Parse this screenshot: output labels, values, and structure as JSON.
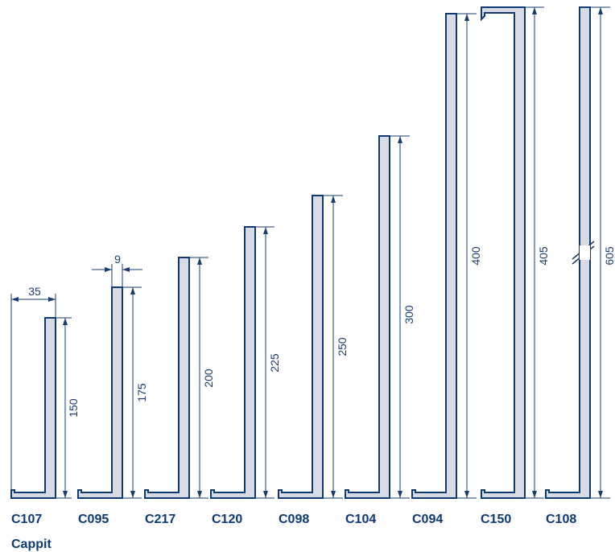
{
  "brand_color": "#0e3a73",
  "dimension_color": "#1a3d6e",
  "profile_fill": "#d8dbe4",
  "footer_label": "Cappit",
  "width_dimension": "35",
  "thickness_dimension": "9",
  "profiles": [
    {
      "code": "C107",
      "height": "150"
    },
    {
      "code": "C095",
      "height": "175"
    },
    {
      "code": "C217",
      "height": "200"
    },
    {
      "code": "C120",
      "height": "225"
    },
    {
      "code": "C098",
      "height": "250"
    },
    {
      "code": "C104",
      "height": "300"
    },
    {
      "code": "C094",
      "height": "400"
    },
    {
      "code": "C150",
      "height": "405"
    },
    {
      "code": "C108",
      "height": "605"
    }
  ]
}
